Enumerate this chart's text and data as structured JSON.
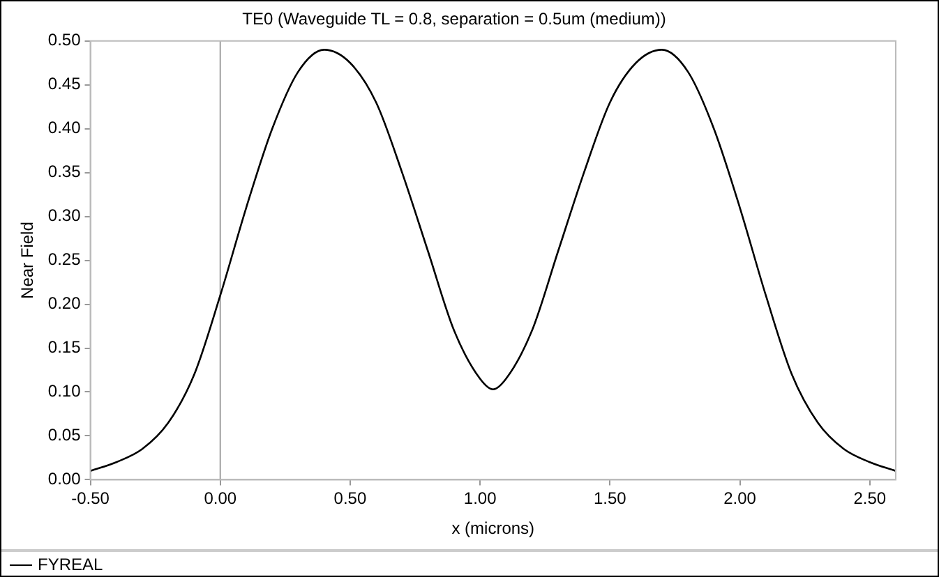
{
  "chart_data": {
    "type": "line",
    "title": "TE0 (Waveguide TL = 0.8, separation = 0.5um (medium))",
    "xlabel": "x (microns)",
    "ylabel": "Near Field",
    "x": [
      -0.5,
      -0.4,
      -0.3,
      -0.2,
      -0.1,
      0,
      0.1,
      0.2,
      0.3,
      0.4,
      0.5,
      0.6,
      0.7,
      0.8,
      0.9,
      1.0,
      1.05,
      1.1,
      1.2,
      1.3,
      1.4,
      1.5,
      1.6,
      1.7,
      1.8,
      1.9,
      2.0,
      2.1,
      2.2,
      2.3,
      2.4,
      2.5,
      2.6
    ],
    "series": [
      {
        "name": "FYREAL",
        "color": "#000000",
        "values": [
          0.01,
          0.02,
          0.035,
          0.065,
          0.12,
          0.21,
          0.31,
          0.4,
          0.465,
          0.49,
          0.475,
          0.43,
          0.35,
          0.26,
          0.17,
          0.115,
          0.103,
          0.115,
          0.17,
          0.26,
          0.35,
          0.43,
          0.475,
          0.49,
          0.465,
          0.4,
          0.31,
          0.21,
          0.12,
          0.065,
          0.035,
          0.02,
          0.01
        ]
      }
    ],
    "xlim": [
      -0.5,
      2.6
    ],
    "xticks": [
      {
        "value": -0.5,
        "label": "-0.50"
      },
      {
        "value": 0,
        "label": "0.00"
      },
      {
        "value": 0.5,
        "label": "0.50"
      },
      {
        "value": 1,
        "label": "1.00"
      },
      {
        "value": 1.5,
        "label": "1.50"
      },
      {
        "value": 2,
        "label": "2.00"
      },
      {
        "value": 2.5,
        "label": "2.50"
      }
    ],
    "ylim": [
      0,
      0.5
    ],
    "yticks": [
      {
        "value": 0,
        "label": "0.00"
      },
      {
        "value": 0.05,
        "label": "0.05"
      },
      {
        "value": 0.1,
        "label": "0.10"
      },
      {
        "value": 0.15,
        "label": "0.15"
      },
      {
        "value": 0.2,
        "label": "0.20"
      },
      {
        "value": 0.25,
        "label": "0.25"
      },
      {
        "value": 0.3,
        "label": "0.30"
      },
      {
        "value": 0.35,
        "label": "0.35"
      },
      {
        "value": 0.4,
        "label": "0.40"
      },
      {
        "value": 0.45,
        "label": "0.45"
      },
      {
        "value": 0.5,
        "label": "0.50"
      }
    ],
    "ref_lines": [
      {
        "axis": "x",
        "value": 0,
        "color": "#a0a0a0"
      }
    ],
    "grid": false,
    "legend": "bottom left",
    "marker": "none",
    "line_style": "solid"
  }
}
